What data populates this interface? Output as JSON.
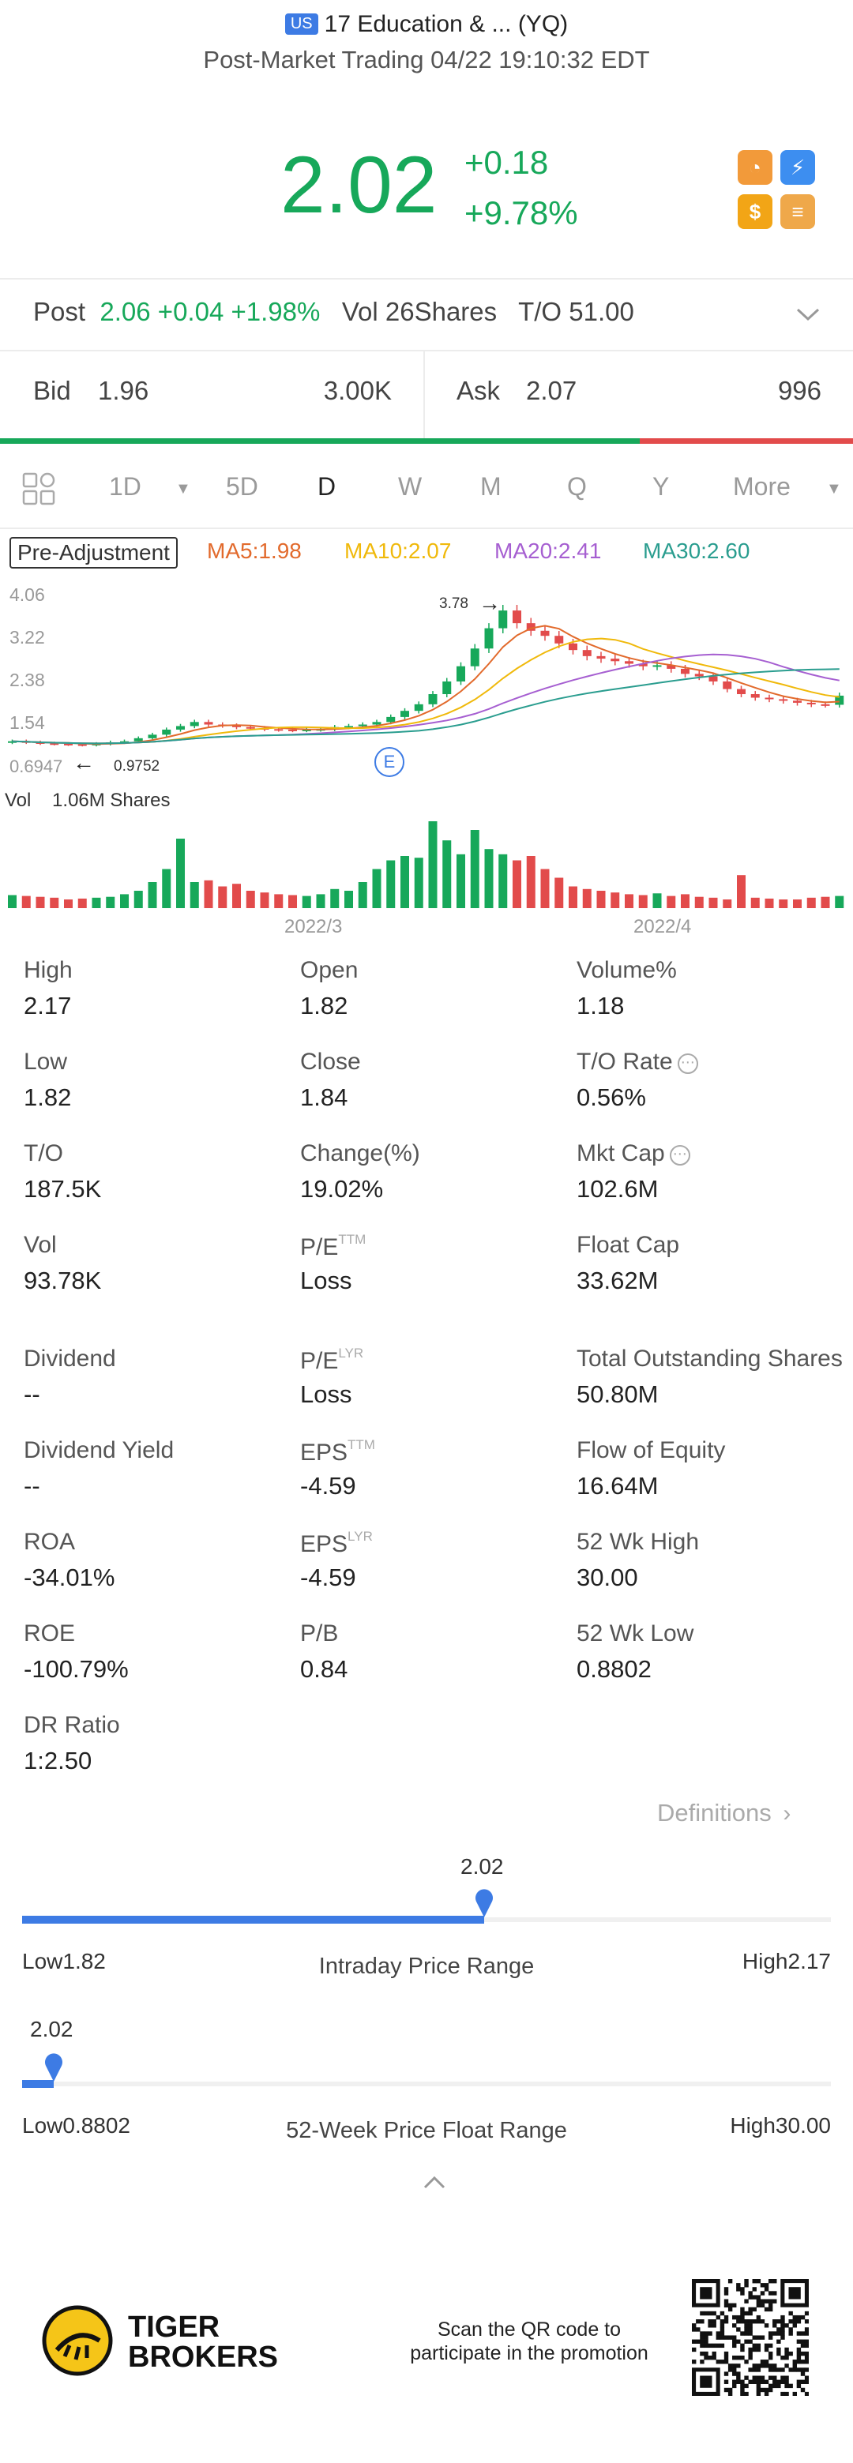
{
  "header": {
    "market_badge": "US",
    "title": "17 Education & ... (YQ)",
    "subtitle": "Post-Market Trading 04/22 19:10:32 EDT"
  },
  "quote": {
    "price": "2.02",
    "change": "+0.18",
    "change_pct": "+9.78%"
  },
  "post_market": {
    "label": "Post",
    "price": "2.06",
    "change": "+0.04",
    "change_pct": "+1.98%",
    "vol_label": "Vol",
    "vol_value": "26Shares",
    "to_label": "T/O",
    "to_value": "51.00"
  },
  "bid_ask": {
    "bid_label": "Bid",
    "bid_price": "1.96",
    "bid_size": "3.00K",
    "ask_label": "Ask",
    "ask_price": "2.07",
    "ask_size": "996",
    "bid_fraction": 0.75
  },
  "periods": [
    "1D",
    "5D",
    "D",
    "W",
    "M",
    "Q",
    "Y",
    "More"
  ],
  "active_period": "D",
  "chart": {
    "adjust_label": "Pre-Adjustment",
    "ma5": "MA5:1.98",
    "ma10": "MA10:2.07",
    "ma20": "MA20:2.41",
    "ma30": "MA30:2.60",
    "y_ticks": [
      "4.06",
      "3.22",
      "2.38",
      "1.54",
      "0.6947"
    ],
    "high_marker": "3.78",
    "low_marker": "0.9752",
    "event_marker": "E",
    "vol_label": "Vol",
    "vol_value": "1.06M Shares",
    "x_ticks": [
      "2022/3",
      "2022/4"
    ],
    "colors": {
      "up": "#17a85a",
      "down": "#e24b4b",
      "ma5": "#e26a2c",
      "ma10": "#f0b90b",
      "ma20": "#a65fd1",
      "ma30": "#2a9d8f"
    }
  },
  "chart_data": {
    "type": "candlestick",
    "ylim": [
      0.6947,
      4.06
    ],
    "y_ticks": [
      4.06,
      3.22,
      2.38,
      1.54,
      0.6947
    ],
    "x_ticks": [
      "2022/3",
      "2022/4"
    ],
    "series": [
      {
        "name": "MA5",
        "value": 1.98
      },
      {
        "name": "MA10",
        "value": 2.07
      },
      {
        "name": "MA20",
        "value": 2.41
      },
      {
        "name": "MA30",
        "value": 2.6
      }
    ],
    "high": 3.78,
    "low": 0.9752,
    "volume": "1.06M Shares"
  },
  "stats": {
    "high_label": "High",
    "high": "2.17",
    "open_label": "Open",
    "open": "1.82",
    "volpct_label": "Volume%",
    "volpct": "1.18",
    "low_label": "Low",
    "low": "1.82",
    "close_label": "Close",
    "close": "1.84",
    "torate_label": "T/O Rate",
    "torate": "0.56%",
    "to_label": "T/O",
    "to": "187.5K",
    "change_label": "Change(%)",
    "change": "19.02%",
    "mktcap_label": "Mkt Cap",
    "mktcap": "102.6M",
    "vol_label": "Vol",
    "vol": "93.78K",
    "pe_label": "P/E",
    "pe_sup": "TTM",
    "pe": "Loss",
    "floatcap_label": "Float Cap",
    "floatcap": "33.62M",
    "dividend_label": "Dividend",
    "dividend": "--",
    "pelyr_label": "P/E",
    "pelyr_sup": "LYR",
    "pelyr": "Loss",
    "tos_label": "Total Outstanding Shares",
    "tos": "50.80M",
    "divyield_label": "Dividend Yield",
    "divyield": "--",
    "eps_label": "EPS",
    "eps_sup": "TTM",
    "eps": "-4.59",
    "foe_label": "Flow of Equity",
    "foe": "16.64M",
    "roa_label": "ROA",
    "roa": "-34.01%",
    "epslyr_label": "EPS",
    "epslyr_sup": "LYR",
    "epslyr": "-4.59",
    "wkhigh_label": "52 Wk High",
    "wkhigh": "30.00",
    "roe_label": "ROE",
    "roe": "-100.79%",
    "pb_label": "P/B",
    "pb": "0.84",
    "wklow_label": "52 Wk Low",
    "wklow": "0.8802",
    "dr_label": "DR Ratio",
    "dr": "1:2.50"
  },
  "definitions_link": "Definitions",
  "intraday_range": {
    "current": "2.02",
    "low": "Low1.82",
    "high": "High2.17",
    "title": "Intraday Price Range",
    "fraction": 0.571
  },
  "week52_range": {
    "current": "2.02",
    "low": "Low0.8802",
    "high": "High30.00",
    "title": "52-Week Price Float Range",
    "fraction": 0.039
  },
  "footer": {
    "brand_line1": "TIGER",
    "brand_line2": "BROKERS",
    "promo_line1": "Scan the QR code to",
    "promo_line2": "participate in the promotion"
  }
}
